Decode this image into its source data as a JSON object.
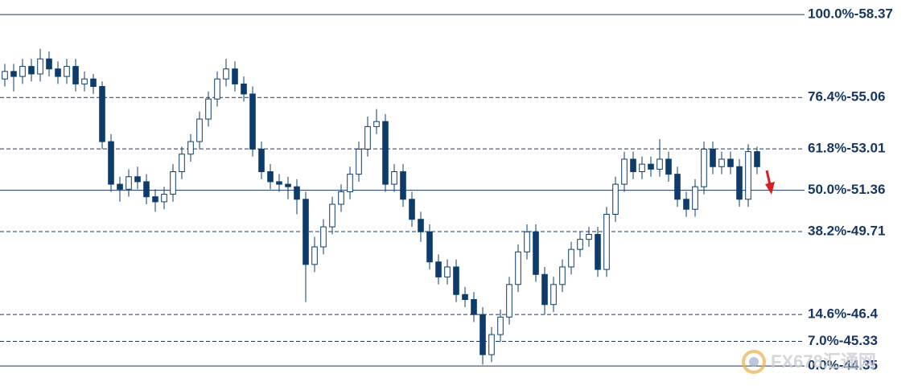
{
  "chart_data": {
    "type": "candlestick",
    "ylim": [
      43.39,
      58.95
    ],
    "up_color": "#ffffff",
    "down_color": "#0d3c6b",
    "outline_color": "#0d3c6b",
    "level_color": "#17365f",
    "levels": [
      {
        "label": "100.0%-58.37",
        "value": 58.37,
        "dashed": false
      },
      {
        "label": "76.4%-55.06",
        "value": 55.06,
        "dashed": true
      },
      {
        "label": "61.8%-53.01",
        "value": 53.01,
        "dashed": true
      },
      {
        "label": "50.0%-51.36",
        "value": 51.36,
        "dashed": false
      },
      {
        "label": "38.2%-49.71",
        "value": 49.71,
        "dashed": true
      },
      {
        "label": "14.6%-46.4",
        "value": 46.4,
        "dashed": true
      },
      {
        "label": "7.0%-45.33",
        "value": 45.33,
        "dashed": true
      },
      {
        "label": "0.0%-44.35",
        "value": 44.35,
        "dashed": false
      }
    ],
    "open": [
      55.8,
      56.1,
      55.9,
      56.3,
      56.0,
      56.6,
      56.2,
      55.9,
      56.3,
      55.6,
      55.8,
      55.5,
      53.3,
      51.6,
      51.4,
      51.9,
      51.7,
      51.1,
      50.9,
      51.2,
      52.1,
      52.8,
      53.3,
      54.2,
      55.0,
      55.8,
      56.2,
      55.6,
      55.2,
      53.0,
      52.1,
      51.7,
      51.6,
      51.5,
      51.0,
      48.4,
      49.1,
      49.9,
      50.8,
      51.3,
      52.0,
      53.0,
      53.9,
      54.1,
      51.6,
      52.1,
      51.0,
      50.2,
      49.7,
      48.5,
      47.9,
      48.3,
      47.2,
      47.0,
      46.4,
      44.8,
      45.6,
      46.3,
      47.6,
      48.9,
      49.7,
      48.0,
      46.8,
      47.6,
      48.3,
      49.0,
      49.4,
      49.6,
      48.2,
      50.4,
      51.6,
      52.6,
      52.1,
      52.4,
      52.2,
      52.6,
      52.0,
      51.0,
      50.6,
      51.5,
      53.0,
      52.3,
      52.6,
      52.3,
      51.0,
      52.9
    ],
    "high": [
      56.4,
      56.4,
      56.6,
      56.6,
      57.0,
      56.9,
      56.5,
      56.6,
      56.6,
      56.1,
      56.0,
      55.7,
      53.6,
      51.9,
      52.2,
      52.3,
      52.0,
      51.4,
      51.5,
      52.4,
      53.1,
      53.6,
      54.5,
      55.3,
      56.1,
      56.6,
      56.5,
      55.9,
      55.5,
      53.3,
      52.4,
      52.0,
      51.9,
      51.8,
      51.3,
      49.5,
      50.2,
      51.1,
      51.6,
      52.3,
      53.3,
      54.3,
      54.6,
      54.4,
      52.4,
      52.4,
      51.3,
      50.5,
      50.0,
      48.8,
      48.6,
      48.6,
      47.5,
      47.3,
      46.7,
      45.9,
      46.6,
      47.9,
      49.2,
      50.0,
      50.0,
      48.3,
      47.9,
      48.6,
      49.3,
      49.7,
      49.9,
      49.9,
      50.7,
      51.9,
      52.9,
      52.9,
      52.7,
      52.7,
      53.4,
      52.9,
      52.3,
      51.3,
      51.8,
      53.3,
      53.3,
      52.9,
      52.9,
      52.6,
      53.2,
      53.1
    ],
    "low": [
      55.5,
      55.3,
      55.6,
      55.7,
      55.7,
      55.9,
      55.6,
      55.6,
      55.3,
      55.3,
      55.2,
      53.0,
      51.3,
      50.9,
      51.1,
      51.4,
      50.8,
      50.5,
      50.6,
      50.9,
      51.8,
      52.5,
      53.0,
      53.9,
      54.7,
      55.5,
      55.3,
      54.9,
      52.7,
      51.8,
      51.4,
      51.3,
      51.0,
      50.4,
      46.9,
      48.1,
      48.8,
      49.6,
      50.5,
      51.0,
      51.7,
      52.7,
      53.6,
      51.3,
      51.3,
      50.7,
      49.9,
      49.3,
      48.2,
      47.6,
      47.6,
      46.9,
      46.7,
      46.1,
      44.4,
      44.5,
      45.3,
      46.0,
      47.3,
      48.6,
      47.7,
      46.4,
      46.5,
      47.3,
      48.0,
      48.7,
      49.1,
      47.9,
      47.9,
      50.1,
      51.3,
      51.8,
      51.8,
      51.9,
      51.9,
      51.7,
      50.7,
      50.3,
      50.3,
      51.2,
      52.0,
      52.0,
      52.0,
      50.7,
      50.7,
      52.0
    ],
    "close": [
      56.1,
      55.9,
      56.3,
      56.0,
      56.6,
      56.2,
      55.9,
      56.3,
      55.6,
      55.8,
      55.5,
      53.3,
      51.6,
      51.4,
      51.9,
      51.7,
      51.1,
      50.9,
      51.2,
      52.1,
      52.8,
      53.3,
      54.2,
      55.0,
      55.8,
      56.2,
      55.6,
      55.2,
      53.0,
      52.1,
      51.7,
      51.6,
      51.5,
      51.0,
      48.4,
      49.1,
      49.9,
      50.8,
      51.3,
      52.0,
      53.0,
      53.9,
      54.1,
      51.6,
      52.1,
      51.0,
      50.2,
      49.7,
      48.5,
      47.9,
      48.3,
      47.2,
      47.0,
      46.4,
      44.8,
      45.6,
      46.3,
      47.6,
      48.9,
      49.7,
      48.0,
      46.8,
      47.6,
      48.3,
      49.0,
      49.4,
      49.6,
      48.2,
      50.4,
      51.6,
      52.6,
      52.1,
      52.4,
      52.2,
      52.6,
      52.0,
      51.0,
      50.6,
      51.5,
      53.0,
      52.3,
      52.6,
      52.3,
      51.0,
      52.9,
      52.3
    ],
    "watermark": "FX678汇通网"
  }
}
